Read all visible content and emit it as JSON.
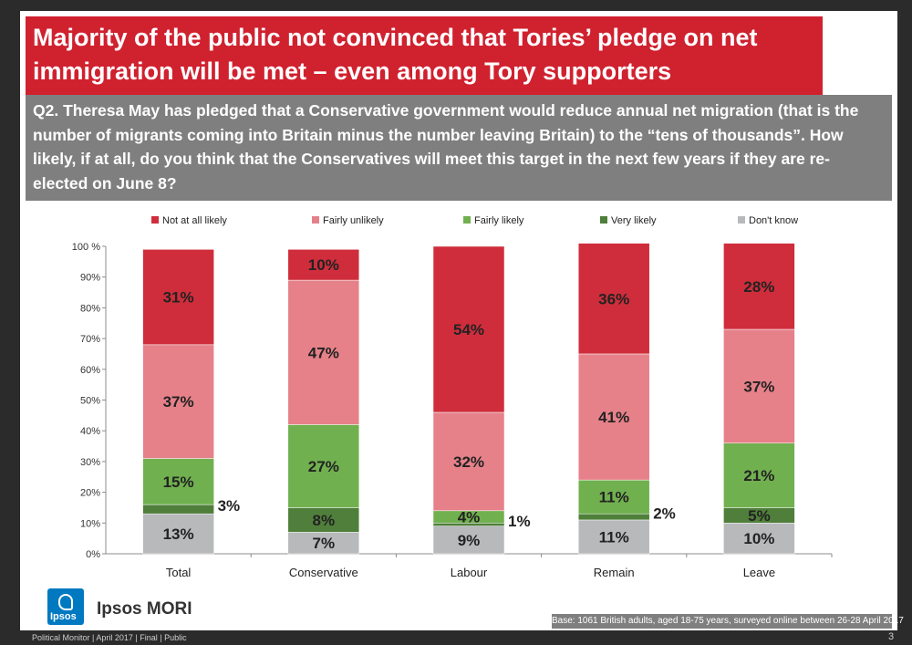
{
  "title": "Majority of the public not convinced that Tories’ pledge on net immigration will be met – even among Tory supporters",
  "question": "Q2. Theresa May has pledged that a Conservative government would reduce annual net migration (that is the number of migrants coming into Britain minus the number leaving Britain) to the “tens of thousands”.  How likely, if at all, do you think that the Conservatives will meet this target in the next few years if they are re-elected on June 8?",
  "base_note": "Base: 1061 British adults, aged 18-75 years, surveyed online between 26-28 April 2017",
  "brand": {
    "name": "Ipsos MORI",
    "logo_text": "Ipsos"
  },
  "footer": {
    "text": "Political Monitor | April 2017 | Final | Public",
    "page_number": "3"
  },
  "colors": {
    "title_bg": "#d0212f",
    "question_bg": "#7f7f7f"
  },
  "chart_data": {
    "type": "bar",
    "stacked": true,
    "categories": [
      "Total",
      "Conservative",
      "Labour",
      "Remain",
      "Leave"
    ],
    "ylim": [
      0,
      100
    ],
    "ytick_labels": [
      "0%",
      "10%",
      "20%",
      "30%",
      "40%",
      "50%",
      "60%",
      "70%",
      "80%",
      "90%",
      "100 %"
    ],
    "legend_position": "top",
    "grid": false,
    "series": [
      {
        "name": "Don't know",
        "color": "#b8b9bb",
        "label_color": "#222222",
        "values": [
          13,
          7,
          9,
          11,
          10
        ],
        "labels": [
          "13%",
          "7%",
          "9%",
          "11%",
          "10%"
        ]
      },
      {
        "name": "Very likely",
        "color": "#4f7f3b",
        "label_color": "#222222",
        "values": [
          3,
          8,
          1,
          2,
          5
        ],
        "labels": [
          "3%",
          "8%",
          "1%",
          "2%",
          "5%"
        ]
      },
      {
        "name": "Fairly likely",
        "color": "#71b04f",
        "label_color": "#222222",
        "values": [
          15,
          27,
          4,
          11,
          21
        ],
        "labels": [
          "15%",
          "27%",
          "4%",
          "11%",
          "21%"
        ]
      },
      {
        "name": "Fairly unlikely",
        "color": "#e68189",
        "label_color": "#222222",
        "values": [
          37,
          47,
          32,
          41,
          37
        ],
        "labels": [
          "37%",
          "47%",
          "32%",
          "41%",
          "37%"
        ]
      },
      {
        "name": "Not at all likely",
        "color": "#cf2d3b",
        "label_color": "#222222",
        "values": [
          31,
          10,
          54,
          36,
          28
        ],
        "labels": [
          "31%",
          "10%",
          "54%",
          "36%",
          "28%"
        ]
      }
    ],
    "legend_order": [
      "Not at all likely",
      "Fairly unlikely",
      "Fairly likely",
      "Very likely",
      "Don't know"
    ]
  }
}
